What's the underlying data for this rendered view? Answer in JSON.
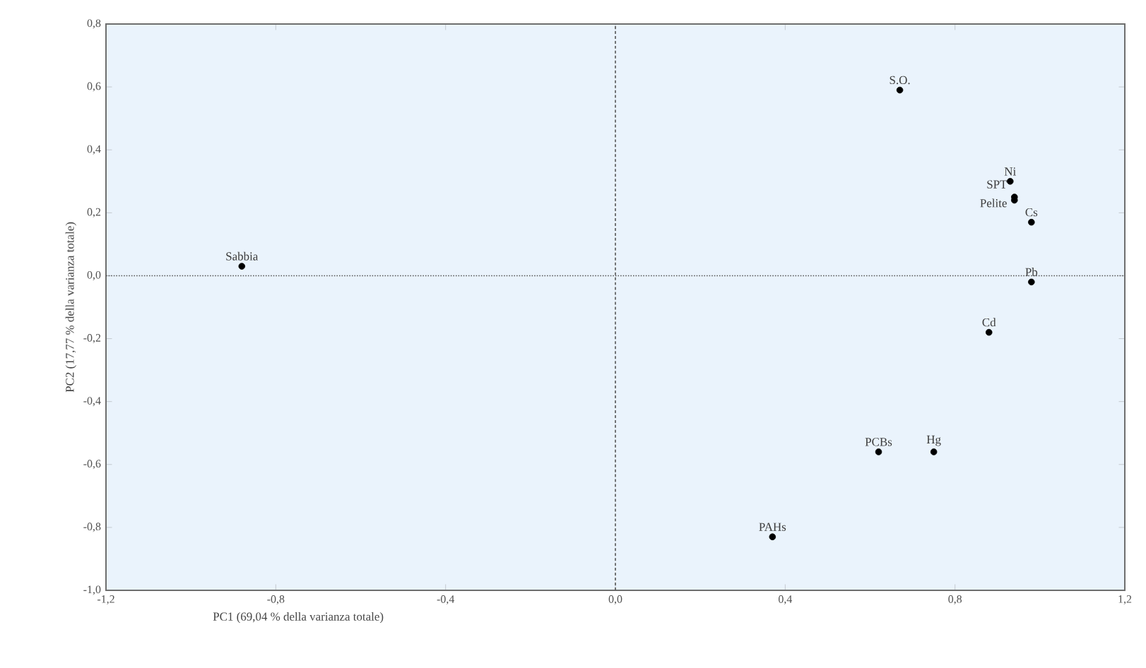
{
  "chart_data": {
    "type": "scatter",
    "xlabel": "PC1 (69,04 % della varianza totale)",
    "ylabel": "PC2 (17,77 % della varianza totale)",
    "series": [
      {
        "color": "#000000",
        "x": [
          0.67,
          0.93,
          0.94,
          0.94,
          0.98,
          -0.88,
          0.98,
          0.88,
          0.62,
          0.75,
          0.37
        ],
        "values": [
          0.59,
          0.3,
          0.25,
          0.24,
          0.17,
          0.03,
          -0.02,
          -0.18,
          -0.56,
          -0.56,
          -0.83
        ]
      }
    ],
    "annotations": [
      {
        "text": "S.O.",
        "x": 0.67,
        "y": 0.59
      },
      {
        "text": "Ni",
        "x": 0.93,
        "y": 0.3
      },
      {
        "text": "SPT",
        "x": 0.94,
        "y": 0.25
      },
      {
        "text": "Pelite",
        "x": 0.94,
        "y": 0.24
      },
      {
        "text": "Cs",
        "x": 0.98,
        "y": 0.17
      },
      {
        "text": "Sabbia",
        "x": -0.88,
        "y": 0.03
      },
      {
        "text": "Pb",
        "x": 0.98,
        "y": -0.02
      },
      {
        "text": "Cd",
        "x": 0.88,
        "y": -0.18
      },
      {
        "text": "PCBs",
        "x": 0.62,
        "y": -0.56
      },
      {
        "text": "Hg",
        "x": 0.75,
        "y": -0.56
      },
      {
        "text": "PAHs",
        "x": 0.37,
        "y": -0.83
      }
    ],
    "ref_lines": [
      {
        "axis": "x",
        "value": 0,
        "line_style": "dashed",
        "color": "#555555"
      },
      {
        "axis": "y",
        "value": 0,
        "line_style": "dotted",
        "color": "#555555"
      }
    ],
    "xlim": [
      -1.2,
      1.2
    ],
    "ylim": [
      -1.0,
      0.8
    ],
    "xticks": [
      {
        "value": -1.2,
        "label": "-1,2"
      },
      {
        "value": -0.8,
        "label": "-0,8"
      },
      {
        "value": -0.4,
        "label": "-0,4"
      },
      {
        "value": 0,
        "label": "0,0"
      },
      {
        "value": 0.4,
        "label": "0,4"
      },
      {
        "value": 0.8,
        "label": "0,8"
      },
      {
        "value": 1.2,
        "label": "1,2"
      }
    ],
    "yticks": [
      {
        "value": -1.0,
        "label": "-1,0"
      },
      {
        "value": -0.8,
        "label": "-0,8"
      },
      {
        "value": -0.6,
        "label": "-0,6"
      },
      {
        "value": -0.4,
        "label": "-0,4"
      },
      {
        "value": -0.2,
        "label": "-0,2"
      },
      {
        "value": 0,
        "label": "0,0"
      },
      {
        "value": 0.2,
        "label": "0,2"
      },
      {
        "value": 0.4,
        "label": "0,4"
      },
      {
        "value": 0.6,
        "label": "0,6"
      },
      {
        "value": 0.8,
        "label": "0,8"
      }
    ],
    "marker": "circle",
    "grid": false
  }
}
